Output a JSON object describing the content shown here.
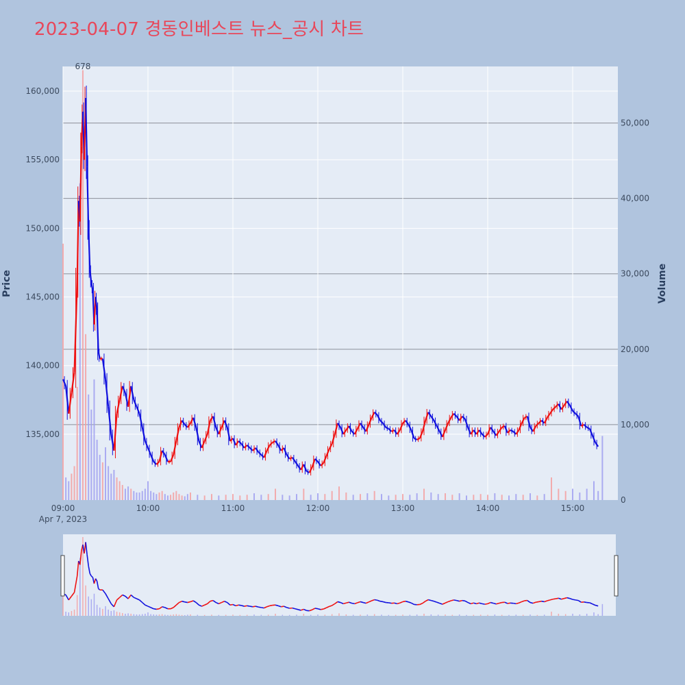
{
  "title": "2023-04-07 경동인베스트 뉴스_공시 차트",
  "colors": {
    "background": "#b0c4de",
    "plot_bg": "#e5ecf6",
    "title": "#e8475a",
    "up": "#ee1111",
    "down": "#1111dd",
    "volume_up": "#f4a0a0",
    "volume_down": "#a0a0f0"
  },
  "chart_data": {
    "type": "candlestick",
    "title": "2023-04-07 경동인베스트 뉴스_공시 차트",
    "x_tick_labels": [
      "09:00",
      "10:00",
      "11:00",
      "12:00",
      "13:00",
      "14:00",
      "15:00"
    ],
    "x_date_label": "Apr 7, 2023",
    "y_price": {
      "label": "Price",
      "range": [
        130200,
        161800
      ],
      "ticks": [
        135000,
        140000,
        145000,
        150000,
        155000,
        160000
      ],
      "tick_labels": [
        "135,000",
        "140,000",
        "145,000",
        "150,000",
        "155,000",
        "160,000"
      ]
    },
    "y_volume": {
      "label": "Volume",
      "range": [
        0,
        57500
      ],
      "ticks": [
        0,
        10000,
        20000,
        30000,
        40000,
        50000
      ],
      "tick_labels": [
        "0",
        "10,000",
        "20,000",
        "30,000",
        "40,000",
        "50,000"
      ]
    },
    "annotations": [
      {
        "text": "678",
        "time": "09:14"
      }
    ],
    "price_points": [
      [
        "09:00",
        139000
      ],
      [
        "09:02",
        138500
      ],
      [
        "09:04",
        136500
      ],
      [
        "09:06",
        138000
      ],
      [
        "09:08",
        139500
      ],
      [
        "09:10",
        146000
      ],
      [
        "09:11",
        152000
      ],
      [
        "09:12",
        150500
      ],
      [
        "09:13",
        156000
      ],
      [
        "09:14",
        158500
      ],
      [
        "09:15",
        155000
      ],
      [
        "09:16",
        159500
      ],
      [
        "09:17",
        154500
      ],
      [
        "09:18",
        150000
      ],
      [
        "09:19",
        147000
      ],
      [
        "09:20",
        146000
      ],
      [
        "09:21",
        145500
      ],
      [
        "09:22",
        143000
      ],
      [
        "09:23",
        145000
      ],
      [
        "09:24",
        144000
      ],
      [
        "09:25",
        141000
      ],
      [
        "09:26",
        140500
      ],
      [
        "09:28",
        140500
      ],
      [
        "09:30",
        139000
      ],
      [
        "09:32",
        137000
      ],
      [
        "09:34",
        135000
      ],
      [
        "09:36",
        133800
      ],
      [
        "09:38",
        136500
      ],
      [
        "09:40",
        137500
      ],
      [
        "09:42",
        138500
      ],
      [
        "09:44",
        138000
      ],
      [
        "09:46",
        137000
      ],
      [
        "09:48",
        138500
      ],
      [
        "09:50",
        137500
      ],
      [
        "09:52",
        137000
      ],
      [
        "09:54",
        136500
      ],
      [
        "09:56",
        135500
      ],
      [
        "09:58",
        134500
      ],
      [
        "10:00",
        134000
      ],
      [
        "10:02",
        133500
      ],
      [
        "10:04",
        133000
      ],
      [
        "10:06",
        132800
      ],
      [
        "10:08",
        133000
      ],
      [
        "10:10",
        133800
      ],
      [
        "10:12",
        133500
      ],
      [
        "10:14",
        133000
      ],
      [
        "10:16",
        133000
      ],
      [
        "10:18",
        133500
      ],
      [
        "10:20",
        134500
      ],
      [
        "10:22",
        135500
      ],
      [
        "10:24",
        136000
      ],
      [
        "10:26",
        135700
      ],
      [
        "10:28",
        135500
      ],
      [
        "10:30",
        135800
      ],
      [
        "10:32",
        136200
      ],
      [
        "10:34",
        135500
      ],
      [
        "10:36",
        134500
      ],
      [
        "10:38",
        134000
      ],
      [
        "10:40",
        134500
      ],
      [
        "10:42",
        135000
      ],
      [
        "10:44",
        136000
      ],
      [
        "10:46",
        136300
      ],
      [
        "10:48",
        135500
      ],
      [
        "10:50",
        135000
      ],
      [
        "10:52",
        135500
      ],
      [
        "10:54",
        136000
      ],
      [
        "10:56",
        135500
      ],
      [
        "10:58",
        134500
      ],
      [
        "11:00",
        134700
      ],
      [
        "11:02",
        134200
      ],
      [
        "11:04",
        134500
      ],
      [
        "11:06",
        134300
      ],
      [
        "11:08",
        134000
      ],
      [
        "11:10",
        134200
      ],
      [
        "11:12",
        134000
      ],
      [
        "11:14",
        133800
      ],
      [
        "11:16",
        134000
      ],
      [
        "11:18",
        133700
      ],
      [
        "11:20",
        133500
      ],
      [
        "11:22",
        133300
      ],
      [
        "11:24",
        133800
      ],
      [
        "11:26",
        134200
      ],
      [
        "11:28",
        134400
      ],
      [
        "11:30",
        134500
      ],
      [
        "11:32",
        134200
      ],
      [
        "11:34",
        133800
      ],
      [
        "11:36",
        134000
      ],
      [
        "11:38",
        133500
      ],
      [
        "11:40",
        133200
      ],
      [
        "11:42",
        133300
      ],
      [
        "11:44",
        133000
      ],
      [
        "11:46",
        132700
      ],
      [
        "11:48",
        132400
      ],
      [
        "11:50",
        132800
      ],
      [
        "11:52",
        132300
      ],
      [
        "11:54",
        132200
      ],
      [
        "11:56",
        132600
      ],
      [
        "11:58",
        133200
      ],
      [
        "12:00",
        133000
      ],
      [
        "12:02",
        132700
      ],
      [
        "12:04",
        132900
      ],
      [
        "12:06",
        133400
      ],
      [
        "12:08",
        133900
      ],
      [
        "12:10",
        134300
      ],
      [
        "12:12",
        135000
      ],
      [
        "12:14",
        135800
      ],
      [
        "12:16",
        135500
      ],
      [
        "12:18",
        135000
      ],
      [
        "12:20",
        135300
      ],
      [
        "12:22",
        135600
      ],
      [
        "12:24",
        135200
      ],
      [
        "12:26",
        135000
      ],
      [
        "12:28",
        135400
      ],
      [
        "12:30",
        135800
      ],
      [
        "12:32",
        135500
      ],
      [
        "12:34",
        135200
      ],
      [
        "12:36",
        135700
      ],
      [
        "12:38",
        136200
      ],
      [
        "12:40",
        136600
      ],
      [
        "12:42",
        136400
      ],
      [
        "12:44",
        136000
      ],
      [
        "12:46",
        135800
      ],
      [
        "12:48",
        135500
      ],
      [
        "12:50",
        135400
      ],
      [
        "12:52",
        135200
      ],
      [
        "12:54",
        135300
      ],
      [
        "12:56",
        135000
      ],
      [
        "12:58",
        135300
      ],
      [
        "13:00",
        135800
      ],
      [
        "13:02",
        136000
      ],
      [
        "13:04",
        135700
      ],
      [
        "13:06",
        135300
      ],
      [
        "13:08",
        134700
      ],
      [
        "13:10",
        134600
      ],
      [
        "13:12",
        134700
      ],
      [
        "13:14",
        135200
      ],
      [
        "13:16",
        136000
      ],
      [
        "13:18",
        136600
      ],
      [
        "13:20",
        136300
      ],
      [
        "13:22",
        136000
      ],
      [
        "13:24",
        135600
      ],
      [
        "13:26",
        135200
      ],
      [
        "13:28",
        134800
      ],
      [
        "13:30",
        135300
      ],
      [
        "13:32",
        135800
      ],
      [
        "13:34",
        136200
      ],
      [
        "13:36",
        136500
      ],
      [
        "13:38",
        136300
      ],
      [
        "13:40",
        136000
      ],
      [
        "13:42",
        136300
      ],
      [
        "13:44",
        136100
      ],
      [
        "13:46",
        135500
      ],
      [
        "13:48",
        135000
      ],
      [
        "13:50",
        135300
      ],
      [
        "13:52",
        135000
      ],
      [
        "13:54",
        135300
      ],
      [
        "13:56",
        135000
      ],
      [
        "13:58",
        134800
      ],
      [
        "14:00",
        135000
      ],
      [
        "14:02",
        135500
      ],
      [
        "14:04",
        135200
      ],
      [
        "14:06",
        134900
      ],
      [
        "14:08",
        135200
      ],
      [
        "14:10",
        135500
      ],
      [
        "14:12",
        135600
      ],
      [
        "14:14",
        135100
      ],
      [
        "14:16",
        135300
      ],
      [
        "14:18",
        135200
      ],
      [
        "14:20",
        135000
      ],
      [
        "14:22",
        135300
      ],
      [
        "14:24",
        135800
      ],
      [
        "14:26",
        136200
      ],
      [
        "14:28",
        136300
      ],
      [
        "14:30",
        135500
      ],
      [
        "14:32",
        135200
      ],
      [
        "14:34",
        135600
      ],
      [
        "14:36",
        135800
      ],
      [
        "14:38",
        136000
      ],
      [
        "14:40",
        135800
      ],
      [
        "14:42",
        136200
      ],
      [
        "14:44",
        136500
      ],
      [
        "14:46",
        136800
      ],
      [
        "14:48",
        137000
      ],
      [
        "14:50",
        137200
      ],
      [
        "14:52",
        136800
      ],
      [
        "14:54",
        137100
      ],
      [
        "14:56",
        137400
      ],
      [
        "14:58",
        137100
      ],
      [
        "15:00",
        136700
      ],
      [
        "15:02",
        136500
      ],
      [
        "15:04",
        136300
      ],
      [
        "15:06",
        135600
      ],
      [
        "15:08",
        135700
      ],
      [
        "15:10",
        135500
      ],
      [
        "15:12",
        135400
      ],
      [
        "15:14",
        134900
      ],
      [
        "15:16",
        134400
      ],
      [
        "15:18",
        134100
      ]
    ],
    "volume_bars": [
      [
        "09:00",
        34000
      ],
      [
        "09:02",
        3000
      ],
      [
        "09:04",
        2500
      ],
      [
        "09:06",
        3500
      ],
      [
        "09:08",
        4500
      ],
      [
        "09:10",
        15000
      ],
      [
        "09:12",
        42000
      ],
      [
        "09:14",
        57000
      ],
      [
        "09:16",
        22000
      ],
      [
        "09:18",
        14000
      ],
      [
        "09:20",
        12000
      ],
      [
        "09:22",
        16000
      ],
      [
        "09:24",
        8000
      ],
      [
        "09:26",
        6000
      ],
      [
        "09:28",
        5000
      ],
      [
        "09:30",
        7000
      ],
      [
        "09:32",
        4500
      ],
      [
        "09:34",
        3500
      ],
      [
        "09:36",
        4000
      ],
      [
        "09:38",
        3000
      ],
      [
        "09:40",
        2500
      ],
      [
        "09:42",
        2000
      ],
      [
        "09:44",
        1500
      ],
      [
        "09:46",
        1800
      ],
      [
        "09:48",
        1500
      ],
      [
        "09:50",
        1200
      ],
      [
        "09:52",
        1000
      ],
      [
        "09:54",
        1000
      ],
      [
        "09:56",
        1200
      ],
      [
        "09:58",
        1500
      ],
      [
        "10:00",
        2500
      ],
      [
        "10:02",
        1200
      ],
      [
        "10:04",
        1000
      ],
      [
        "10:06",
        800
      ],
      [
        "10:08",
        1000
      ],
      [
        "10:10",
        1200
      ],
      [
        "10:12",
        800
      ],
      [
        "10:14",
        600
      ],
      [
        "10:16",
        700
      ],
      [
        "10:18",
        1000
      ],
      [
        "10:20",
        1200
      ],
      [
        "10:22",
        800
      ],
      [
        "10:24",
        600
      ],
      [
        "10:26",
        500
      ],
      [
        "10:28",
        800
      ],
      [
        "10:30",
        1000
      ],
      [
        "10:35",
        700
      ],
      [
        "10:40",
        600
      ],
      [
        "10:45",
        800
      ],
      [
        "10:50",
        600
      ],
      [
        "10:55",
        700
      ],
      [
        "11:00",
        800
      ],
      [
        "11:05",
        600
      ],
      [
        "11:10",
        700
      ],
      [
        "11:15",
        900
      ],
      [
        "11:20",
        700
      ],
      [
        "11:25",
        800
      ],
      [
        "11:30",
        1500
      ],
      [
        "11:35",
        700
      ],
      [
        "11:40",
        600
      ],
      [
        "11:45",
        800
      ],
      [
        "11:50",
        1500
      ],
      [
        "11:55",
        700
      ],
      [
        "12:00",
        900
      ],
      [
        "12:05",
        800
      ],
      [
        "12:10",
        1200
      ],
      [
        "12:15",
        1800
      ],
      [
        "12:20",
        1000
      ],
      [
        "12:25",
        700
      ],
      [
        "12:30",
        800
      ],
      [
        "12:35",
        900
      ],
      [
        "12:40",
        1200
      ],
      [
        "12:45",
        800
      ],
      [
        "12:50",
        600
      ],
      [
        "12:55",
        700
      ],
      [
        "13:00",
        800
      ],
      [
        "13:05",
        700
      ],
      [
        "13:10",
        900
      ],
      [
        "13:15",
        1500
      ],
      [
        "13:20",
        1000
      ],
      [
        "13:25",
        800
      ],
      [
        "13:30",
        900
      ],
      [
        "13:35",
        700
      ],
      [
        "13:40",
        900
      ],
      [
        "13:45",
        600
      ],
      [
        "13:50",
        700
      ],
      [
        "13:55",
        800
      ],
      [
        "14:00",
        700
      ],
      [
        "14:05",
        900
      ],
      [
        "14:10",
        700
      ],
      [
        "14:15",
        600
      ],
      [
        "14:20",
        800
      ],
      [
        "14:25",
        700
      ],
      [
        "14:30",
        900
      ],
      [
        "14:35",
        600
      ],
      [
        "14:40",
        800
      ],
      [
        "14:45",
        3000
      ],
      [
        "14:50",
        1500
      ],
      [
        "14:55",
        1200
      ],
      [
        "15:00",
        1500
      ],
      [
        "15:05",
        1000
      ],
      [
        "15:10",
        1500
      ],
      [
        "15:15",
        2500
      ],
      [
        "15:18",
        1200
      ],
      [
        "15:21",
        8500
      ]
    ]
  }
}
